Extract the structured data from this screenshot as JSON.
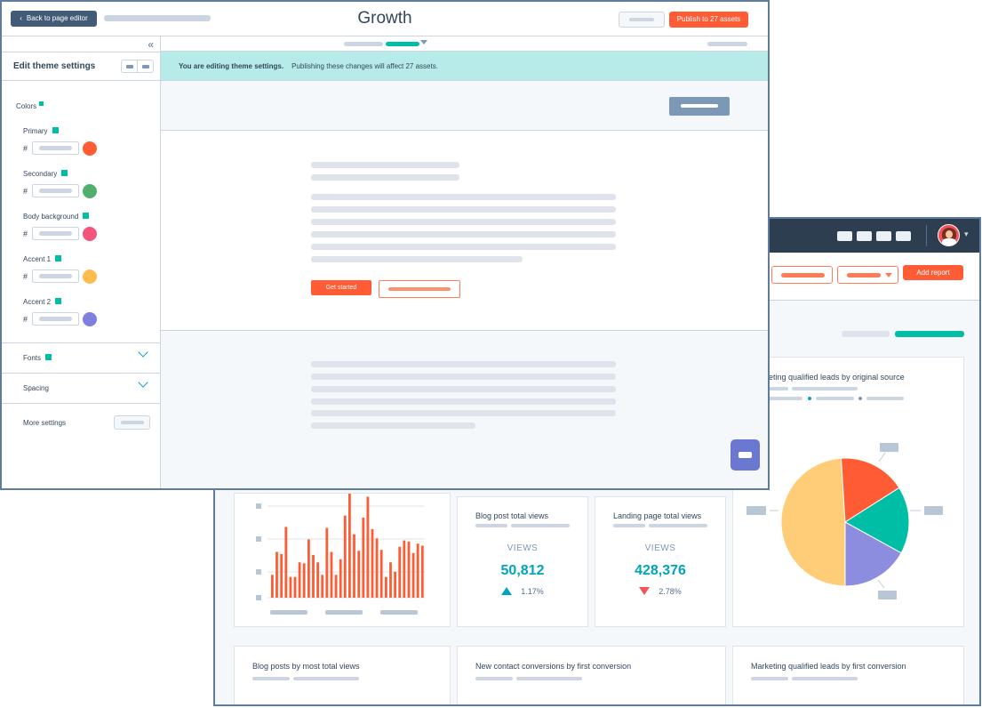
{
  "editor": {
    "back_button_label": "Back to page editor",
    "title": "Growth",
    "publish_button_label": "Publish to 27 assets",
    "sidebar": {
      "title": "Edit theme settings",
      "colors_label": "Colors",
      "colors": [
        {
          "label": "Primary",
          "swatch": "#ff5c35"
        },
        {
          "label": "Secondary",
          "swatch": "#4fb06d"
        },
        {
          "label": "Body background",
          "swatch": "#f2547d"
        },
        {
          "label": "Accent 1",
          "swatch": "#ffbc4c"
        },
        {
          "label": "Accent 2",
          "swatch": "#7f7fdf"
        }
      ],
      "hash_symbol": "#",
      "fonts_label": "Fonts",
      "spacing_label": "Spacing",
      "more_settings_label": "More settings"
    },
    "banner": {
      "bold_text": "You are editing theme settings.",
      "text": "Publishing these changes will affect 27 assets."
    },
    "cta_label": "Get started"
  },
  "dashboard": {
    "add_report_label": "Add report",
    "cards": {
      "mql_source_title": "Marketing qualified leads by original source",
      "blog_views_title": "Blog post total views",
      "landing_views_title": "Landing page total views",
      "blog_posts_title": "Blog posts by most total views",
      "new_contact_title": "New contact conversions by first conversion",
      "mql_first_title": "Marketing qualified leads by first conversion"
    },
    "metrics": {
      "views_label": "VIEWS",
      "blog_views": "50,812",
      "blog_delta": "1.17%",
      "landing_views": "428,376",
      "landing_delta": "2.78%"
    },
    "colors": {
      "nav": "#2d3e50",
      "accent": "#ff5c35",
      "teal": "#00a4bd"
    }
  },
  "chart_data": [
    {
      "type": "bar",
      "values": [
        22,
        44,
        42,
        68,
        20,
        20,
        34,
        33,
        56,
        41,
        34,
        22,
        67,
        44,
        22,
        37,
        79,
        100,
        61,
        45,
        77,
        97,
        66,
        57,
        46,
        20,
        34,
        25,
        49,
        55,
        54,
        43,
        52,
        50
      ]
    },
    {
      "type": "pie",
      "values": [
        49,
        17,
        17,
        17
      ],
      "colors": [
        "#ffcd78",
        "#ff5c35",
        "#00bda5",
        "#8d8ddf"
      ]
    }
  ]
}
